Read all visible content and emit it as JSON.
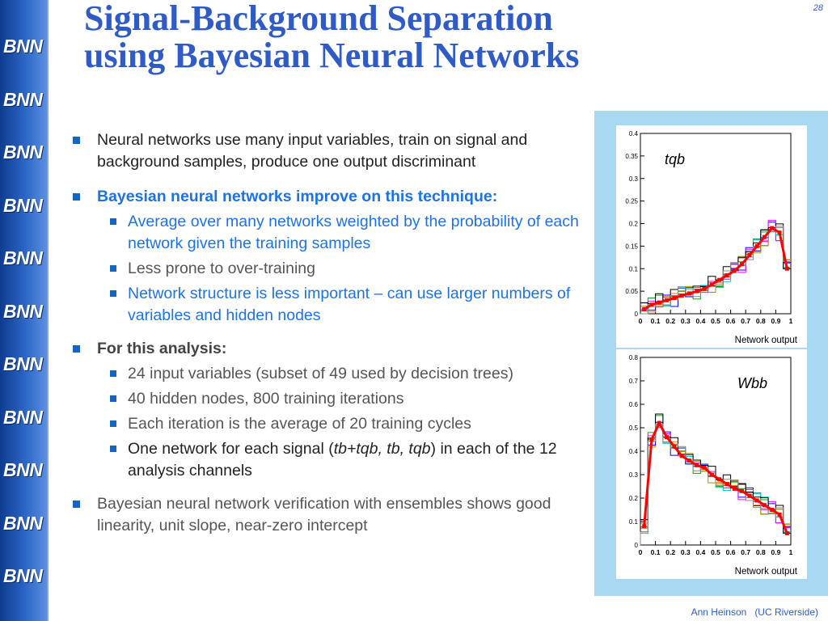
{
  "slide": {
    "number": "28",
    "title_line1": "Signal-Background Separation",
    "title_line2": "using Bayesian Neural Networks",
    "footer_author": "Ann Heinson",
    "footer_affil": "(UC Riverside)"
  },
  "sidebar": {
    "logo_text": "BNN",
    "count": 11
  },
  "bullets": {
    "b1": "Neural networks use many input variables, train on signal and background samples, produce one output discriminant",
    "b2": "Bayesian neural networks improve on this technique:",
    "b2_subs": [
      "Average over many networks weighted by the probability of each network given the training samples",
      "Less prone to over-training",
      "Network structure is less important – can use larger numbers of variables and hidden nodes"
    ],
    "b3": "For this analysis:",
    "b3_subs": [
      "24 input variables (subset of 49 used by decision trees)",
      "40 hidden nodes, 800 training iterations",
      "Each iteration is the average of 20 training cycles"
    ],
    "b3_last_pre": "One network for each signal (",
    "b3_last_italic": "tb+tqb, tb, tqb",
    "b3_last_post": ") in each of the 12 analysis channels",
    "b4": "Bayesian neural network verification with ensembles shows good linearity, unit slope, near-zero intercept"
  },
  "colors": {
    "title": "#2f5bc6",
    "bullet_blue": "#1a73e8",
    "panel": "#a8d8f2",
    "series_main": "#ff0000"
  },
  "chart_data": [
    {
      "type": "line",
      "label": "tqb",
      "xlabel": "Network output",
      "xlim": [
        0,
        1
      ],
      "ylim": [
        0,
        0.4
      ],
      "x_ticks": [
        "0",
        "0.1",
        "0.2",
        "0.3",
        "0.4",
        "0.5",
        "0.6",
        "0.7",
        "0.8",
        "0.9",
        "1"
      ],
      "y_ticks": [
        "0",
        "0.05",
        "0.1",
        "0.15",
        "0.2",
        "0.25",
        "0.3",
        "0.35",
        "0.4"
      ],
      "x": [
        0.025,
        0.075,
        0.125,
        0.175,
        0.225,
        0.275,
        0.325,
        0.375,
        0.425,
        0.475,
        0.525,
        0.575,
        0.625,
        0.675,
        0.725,
        0.775,
        0.825,
        0.875,
        0.925,
        0.975
      ],
      "values": [
        0.01,
        0.02,
        0.025,
        0.03,
        0.035,
        0.04,
        0.045,
        0.05,
        0.055,
        0.065,
        0.075,
        0.085,
        0.095,
        0.11,
        0.13,
        0.15,
        0.17,
        0.19,
        0.18,
        0.1
      ]
    },
    {
      "type": "line",
      "label": "Wbb",
      "xlabel": "Network output",
      "xlim": [
        0,
        1
      ],
      "ylim": [
        0,
        0.8
      ],
      "x_ticks": [
        "0",
        "0.1",
        "0.2",
        "0.3",
        "0.4",
        "0.5",
        "0.6",
        "0.7",
        "0.8",
        "0.9",
        "1"
      ],
      "y_ticks": [
        "0",
        "0.1",
        "0.2",
        "0.3",
        "0.4",
        "0.5",
        "0.6",
        "0.7",
        "0.8"
      ],
      "x": [
        0.025,
        0.075,
        0.125,
        0.175,
        0.225,
        0.275,
        0.325,
        0.375,
        0.425,
        0.475,
        0.525,
        0.575,
        0.625,
        0.675,
        0.725,
        0.775,
        0.825,
        0.875,
        0.925,
        0.975
      ],
      "values": [
        0.08,
        0.45,
        0.52,
        0.46,
        0.42,
        0.38,
        0.36,
        0.34,
        0.33,
        0.3,
        0.28,
        0.26,
        0.24,
        0.23,
        0.21,
        0.19,
        0.17,
        0.15,
        0.13,
        0.05
      ]
    }
  ]
}
